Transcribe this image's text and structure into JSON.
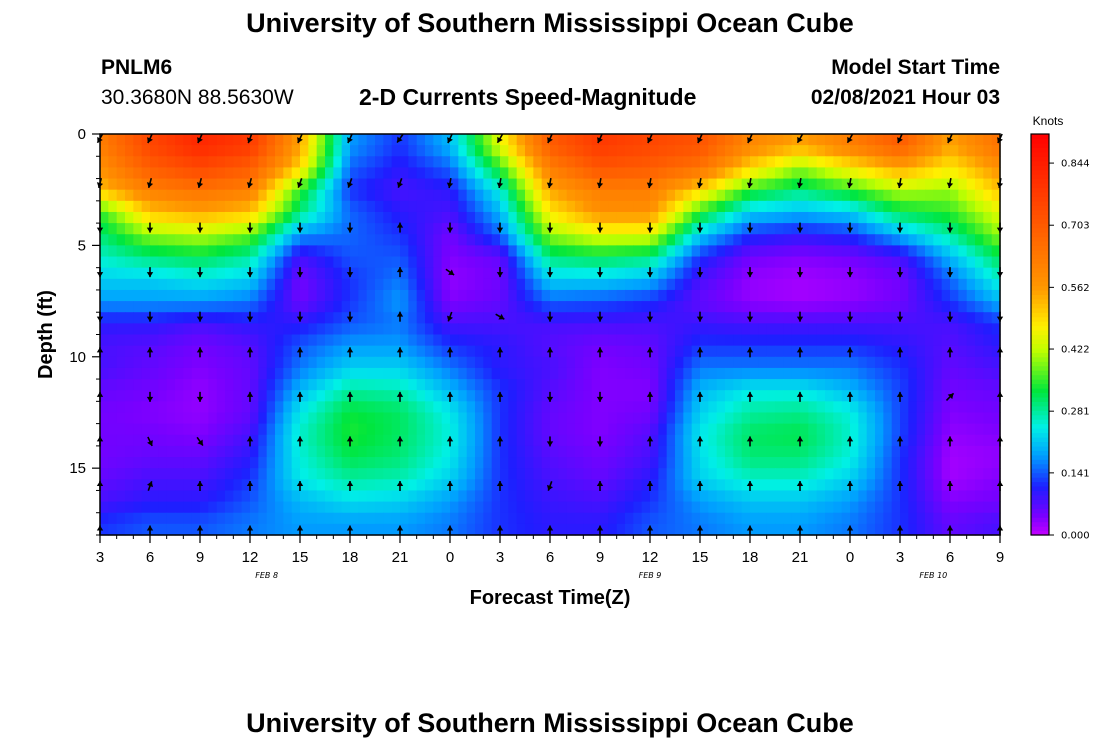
{
  "header": {
    "title": "University of Southern Mississippi Ocean Cube",
    "station": "PNLM6",
    "coords": "30.3680N 88.5630W",
    "subtitle": "2-D Currents Speed-Magnitude",
    "model_start_label": "Model Start Time",
    "model_start_value": "02/08/2021 Hour 03"
  },
  "footer": {
    "title": "University of Southern Mississippi Ocean Cube"
  },
  "colors": {
    "background": "#ffffff",
    "axis": "#000000",
    "arrow": "#000000"
  },
  "chart_data": {
    "type": "heatmap",
    "title": "2-D Currents Speed-Magnitude",
    "xlabel": "Forecast Time(Z)",
    "ylabel": "Depth (ft)",
    "x_range_hours": [
      0,
      54
    ],
    "y_range_ft": [
      0,
      18
    ],
    "x_ticks": [
      {
        "h": 0,
        "label": "3"
      },
      {
        "h": 3,
        "label": "6"
      },
      {
        "h": 6,
        "label": "9"
      },
      {
        "h": 9,
        "label": "12"
      },
      {
        "h": 12,
        "label": "15"
      },
      {
        "h": 15,
        "label": "18"
      },
      {
        "h": 18,
        "label": "21"
      },
      {
        "h": 21,
        "label": "0"
      },
      {
        "h": 24,
        "label": "3"
      },
      {
        "h": 27,
        "label": "6"
      },
      {
        "h": 30,
        "label": "9"
      },
      {
        "h": 33,
        "label": "12"
      },
      {
        "h": 36,
        "label": "15"
      },
      {
        "h": 39,
        "label": "18"
      },
      {
        "h": 42,
        "label": "21"
      },
      {
        "h": 45,
        "label": "0"
      },
      {
        "h": 48,
        "label": "3"
      },
      {
        "h": 51,
        "label": "6"
      },
      {
        "h": 54,
        "label": "9"
      }
    ],
    "date_labels": [
      {
        "h": 10,
        "label": "FEB 8"
      },
      {
        "h": 33,
        "label": "FEB 9"
      },
      {
        "h": 50,
        "label": "FEB 10"
      }
    ],
    "y_ticks": [
      {
        "v": 0,
        "label": "0"
      },
      {
        "v": 5,
        "label": "5"
      },
      {
        "v": 10,
        "label": "10"
      },
      {
        "v": 15,
        "label": "15"
      }
    ],
    "colorbar": {
      "units": "Knots",
      "min": 0.0,
      "max": 0.91,
      "ticks": [
        "0.000",
        "0.141",
        "0.281",
        "0.422",
        "0.562",
        "0.703",
        "0.844"
      ],
      "tick_values": [
        0.0,
        0.141,
        0.281,
        0.422,
        0.562,
        0.703,
        0.844
      ],
      "colormap": "rainbow"
    },
    "depth_levels_ft": [
      0.5,
      1.5,
      2.5,
      3.5,
      4.5,
      5.5,
      6.5,
      7.5,
      8.5,
      9.5,
      10.5,
      11.5,
      12.5,
      13.5,
      14.5,
      15.5,
      16.5,
      17.5
    ],
    "time_hours": [
      0,
      3,
      6,
      9,
      12,
      15,
      18,
      21,
      24,
      27,
      30,
      33,
      36,
      39,
      42,
      45,
      48,
      51,
      54
    ],
    "speed_knots": [
      [
        0.62,
        0.75,
        0.82,
        0.78,
        0.55,
        0.18,
        0.12,
        0.2,
        0.45,
        0.7,
        0.78,
        0.75,
        0.72,
        0.6,
        0.55,
        0.62,
        0.7,
        0.55,
        0.65
      ],
      [
        0.58,
        0.7,
        0.75,
        0.7,
        0.5,
        0.15,
        0.1,
        0.15,
        0.35,
        0.62,
        0.72,
        0.7,
        0.65,
        0.5,
        0.4,
        0.48,
        0.55,
        0.48,
        0.58
      ],
      [
        0.52,
        0.62,
        0.65,
        0.62,
        0.35,
        0.12,
        0.08,
        0.1,
        0.25,
        0.55,
        0.62,
        0.62,
        0.5,
        0.35,
        0.3,
        0.35,
        0.42,
        0.4,
        0.52
      ],
      [
        0.35,
        0.52,
        0.55,
        0.52,
        0.3,
        0.15,
        0.1,
        0.08,
        0.2,
        0.48,
        0.58,
        0.58,
        0.35,
        0.22,
        0.2,
        0.22,
        0.32,
        0.35,
        0.45
      ],
      [
        0.3,
        0.4,
        0.42,
        0.38,
        0.18,
        0.15,
        0.12,
        0.05,
        0.15,
        0.4,
        0.45,
        0.45,
        0.22,
        0.12,
        0.1,
        0.12,
        0.2,
        0.28,
        0.4
      ],
      [
        0.26,
        0.3,
        0.32,
        0.28,
        0.08,
        0.14,
        0.14,
        0.04,
        0.06,
        0.3,
        0.32,
        0.3,
        0.12,
        0.05,
        0.04,
        0.05,
        0.08,
        0.2,
        0.32
      ],
      [
        0.22,
        0.22,
        0.24,
        0.22,
        0.05,
        0.12,
        0.16,
        0.03,
        0.05,
        0.22,
        0.22,
        0.2,
        0.08,
        0.03,
        0.02,
        0.03,
        0.05,
        0.15,
        0.26
      ],
      [
        0.18,
        0.18,
        0.18,
        0.16,
        0.05,
        0.12,
        0.18,
        0.04,
        0.06,
        0.15,
        0.14,
        0.12,
        0.06,
        0.03,
        0.02,
        0.03,
        0.05,
        0.12,
        0.2
      ],
      [
        0.1,
        0.1,
        0.08,
        0.1,
        0.1,
        0.14,
        0.16,
        0.08,
        0.08,
        0.08,
        0.08,
        0.08,
        0.09,
        0.08,
        0.08,
        0.08,
        0.08,
        0.08,
        0.12
      ],
      [
        0.08,
        0.07,
        0.05,
        0.07,
        0.14,
        0.18,
        0.18,
        0.12,
        0.1,
        0.07,
        0.05,
        0.06,
        0.12,
        0.12,
        0.12,
        0.12,
        0.1,
        0.07,
        0.1
      ],
      [
        0.08,
        0.06,
        0.04,
        0.06,
        0.16,
        0.22,
        0.22,
        0.16,
        0.1,
        0.08,
        0.04,
        0.05,
        0.16,
        0.16,
        0.16,
        0.16,
        0.12,
        0.06,
        0.08
      ],
      [
        0.06,
        0.05,
        0.03,
        0.06,
        0.2,
        0.28,
        0.27,
        0.2,
        0.12,
        0.07,
        0.04,
        0.04,
        0.2,
        0.24,
        0.24,
        0.2,
        0.13,
        0.05,
        0.06
      ],
      [
        0.05,
        0.04,
        0.03,
        0.06,
        0.24,
        0.33,
        0.31,
        0.24,
        0.12,
        0.06,
        0.04,
        0.05,
        0.22,
        0.28,
        0.29,
        0.25,
        0.13,
        0.04,
        0.05
      ],
      [
        0.05,
        0.05,
        0.04,
        0.08,
        0.26,
        0.34,
        0.31,
        0.25,
        0.12,
        0.06,
        0.04,
        0.07,
        0.24,
        0.31,
        0.32,
        0.26,
        0.13,
        0.03,
        0.04
      ],
      [
        0.05,
        0.06,
        0.06,
        0.1,
        0.25,
        0.32,
        0.3,
        0.24,
        0.12,
        0.07,
        0.05,
        0.08,
        0.23,
        0.3,
        0.3,
        0.25,
        0.12,
        0.02,
        0.03
      ],
      [
        0.06,
        0.08,
        0.08,
        0.12,
        0.24,
        0.28,
        0.27,
        0.22,
        0.12,
        0.08,
        0.06,
        0.1,
        0.22,
        0.26,
        0.26,
        0.22,
        0.12,
        0.02,
        0.04
      ],
      [
        0.08,
        0.1,
        0.1,
        0.14,
        0.2,
        0.23,
        0.22,
        0.18,
        0.12,
        0.09,
        0.08,
        0.12,
        0.18,
        0.21,
        0.21,
        0.18,
        0.12,
        0.04,
        0.05
      ],
      [
        0.12,
        0.14,
        0.14,
        0.16,
        0.18,
        0.18,
        0.18,
        0.16,
        0.12,
        0.1,
        0.1,
        0.14,
        0.16,
        0.18,
        0.18,
        0.16,
        0.12,
        0.06,
        0.08
      ]
    ],
    "arrow_depths_ft": [
      0.2,
      2.2,
      4.2,
      6.2,
      8.2,
      9.8,
      11.8,
      13.8,
      15.8,
      17.8
    ],
    "arrow_directions_deg": [
      [
        210,
        205,
        205,
        200,
        205,
        205,
        215,
        205,
        210,
        205,
        205,
        205,
        205,
        205,
        210,
        210,
        205,
        205,
        205
      ],
      [
        195,
        195,
        195,
        195,
        200,
        200,
        200,
        190,
        190,
        190,
        190,
        190,
        190,
        190,
        190,
        190,
        190,
        190,
        190
      ],
      [
        180,
        180,
        180,
        180,
        180,
        180,
        0,
        180,
        180,
        180,
        180,
        180,
        180,
        180,
        180,
        180,
        180,
        180,
        180
      ],
      [
        180,
        180,
        180,
        180,
        180,
        180,
        0,
        125,
        180,
        180,
        180,
        180,
        180,
        180,
        180,
        180,
        180,
        180,
        180
      ],
      [
        180,
        180,
        180,
        180,
        180,
        180,
        0,
        200,
        120,
        180,
        180,
        180,
        180,
        180,
        180,
        180,
        180,
        180,
        180
      ],
      [
        0,
        0,
        0,
        0,
        0,
        0,
        0,
        0,
        0,
        0,
        0,
        0,
        0,
        0,
        0,
        0,
        0,
        0,
        0
      ],
      [
        0,
        180,
        180,
        0,
        0,
        0,
        0,
        0,
        0,
        180,
        180,
        0,
        0,
        0,
        0,
        0,
        0,
        45,
        0
      ],
      [
        0,
        155,
        145,
        0,
        0,
        0,
        0,
        0,
        0,
        180,
        180,
        0,
        0,
        0,
        0,
        0,
        0,
        0,
        0
      ],
      [
        0,
        20,
        0,
        0,
        0,
        0,
        0,
        0,
        0,
        200,
        0,
        0,
        0,
        0,
        0,
        0,
        0,
        0,
        0
      ],
      [
        0,
        0,
        0,
        0,
        0,
        0,
        0,
        0,
        0,
        0,
        0,
        0,
        0,
        0,
        0,
        0,
        0,
        0,
        0
      ]
    ]
  }
}
